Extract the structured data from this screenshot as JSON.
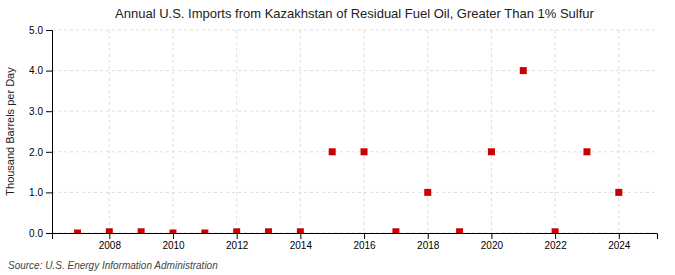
{
  "chart_data": {
    "type": "scatter",
    "title": "Annual U.S. Imports from Kazakhstan of Residual Fuel Oil, Greater Than 1% Sulfur",
    "ylabel": "Thousand Barrels per Day",
    "source": "Source: U.S. Energy Information Administration",
    "color": "#cc0000",
    "marker": "square",
    "grid": true,
    "xlim": [
      2006.2,
      2025.2
    ],
    "ylim": [
      0.0,
      5.0
    ],
    "xticks": [
      2008,
      2010,
      2012,
      2014,
      2016,
      2018,
      2020,
      2022,
      2024
    ],
    "yticks": [
      {
        "value": 0.0,
        "label": "0.0"
      },
      {
        "value": 1.0,
        "label": "1.0"
      },
      {
        "value": 2.0,
        "label": "2.0"
      },
      {
        "value": 3.0,
        "label": "3.0"
      },
      {
        "value": 4.0,
        "label": "4.0"
      },
      {
        "value": 5.0,
        "label": "5.0"
      }
    ],
    "x": [
      2007,
      2008,
      2009,
      2010,
      2011,
      2012,
      2013,
      2014,
      2015,
      2016,
      2017,
      2018,
      2019,
      2020,
      2021,
      2022,
      2023,
      2024
    ],
    "values": [
      0.0,
      0.03,
      0.03,
      0.0,
      0.0,
      0.03,
      0.03,
      0.03,
      2.0,
      2.0,
      0.03,
      1.0,
      0.03,
      2.0,
      4.0,
      0.03,
      2.0,
      1.0
    ]
  }
}
